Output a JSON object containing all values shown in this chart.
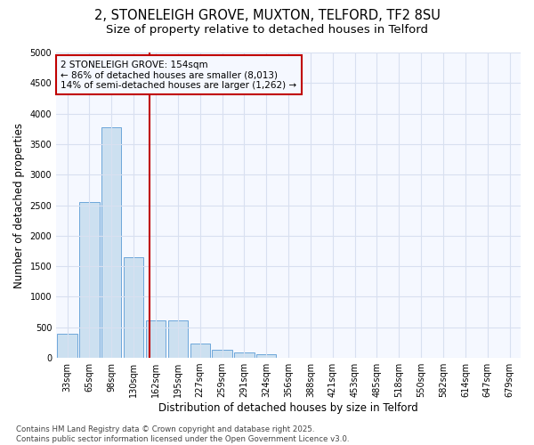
{
  "title_line1": "2, STONELEIGH GROVE, MUXTON, TELFORD, TF2 8SU",
  "title_line2": "Size of property relative to detached houses in Telford",
  "xlabel": "Distribution of detached houses by size in Telford",
  "ylabel": "Number of detached properties",
  "categories": [
    "33sqm",
    "65sqm",
    "98sqm",
    "130sqm",
    "162sqm",
    "195sqm",
    "227sqm",
    "259sqm",
    "291sqm",
    "324sqm",
    "356sqm",
    "388sqm",
    "421sqm",
    "453sqm",
    "485sqm",
    "518sqm",
    "550sqm",
    "582sqm",
    "614sqm",
    "647sqm",
    "679sqm"
  ],
  "values": [
    390,
    2550,
    3780,
    1650,
    620,
    620,
    240,
    130,
    90,
    55,
    0,
    0,
    0,
    0,
    0,
    0,
    0,
    0,
    0,
    0,
    0
  ],
  "bar_color": "#cce0f0",
  "bar_edge_color": "#5b9bd5",
  "vline_x_index": 3.72,
  "vline_color": "#c00000",
  "annotation_text": "2 STONELEIGH GROVE: 154sqm\n← 86% of detached houses are smaller (8,013)\n14% of semi-detached houses are larger (1,262) →",
  "annotation_box_color": "#c00000",
  "ylim": [
    0,
    5000
  ],
  "yticks": [
    0,
    500,
    1000,
    1500,
    2000,
    2500,
    3000,
    3500,
    4000,
    4500,
    5000
  ],
  "footnote": "Contains HM Land Registry data © Crown copyright and database right 2025.\nContains public sector information licensed under the Open Government Licence v3.0.",
  "bg_color": "#ffffff",
  "plot_bg_color": "#f5f8ff",
  "grid_color": "#d8e0f0",
  "title_fontsize": 10.5,
  "subtitle_fontsize": 9.5,
  "tick_fontsize": 7,
  "label_fontsize": 8.5,
  "footnote_fontsize": 6.2
}
